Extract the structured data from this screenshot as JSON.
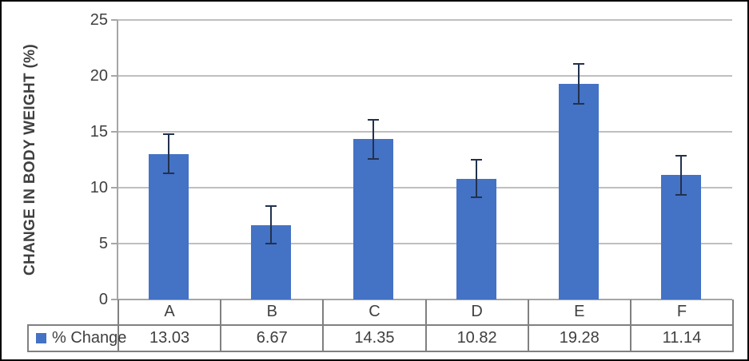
{
  "chart_data": {
    "type": "bar",
    "title": "",
    "xlabel": "",
    "ylabel": "CHANGE IN BODY WEIGHT (%)",
    "categories": [
      "A",
      "B",
      "C",
      "D",
      "E",
      "F"
    ],
    "series": [
      {
        "name": "% Change",
        "values": [
          13.03,
          6.67,
          14.35,
          10.82,
          19.28,
          11.14
        ],
        "values_display": [
          "13.03",
          "6.67",
          "14.35",
          "10.82",
          "19.28",
          "11.14"
        ],
        "error_bars": [
          1.75,
          1.7,
          1.75,
          1.7,
          1.8,
          1.75
        ]
      }
    ],
    "ylim": [
      0,
      25
    ],
    "yticks": [
      0,
      5,
      10,
      15,
      20,
      25
    ],
    "grid": true,
    "has_data_table": true,
    "legend_position": "data-table-left"
  },
  "colors": {
    "bar_fill": "#4472C4",
    "error_bar": "#22314E",
    "gridline": "#BFBFBF",
    "axis_line": "#A6A6A6",
    "table_border": "#808080",
    "text": "#3F3F3F",
    "frame_border": "#000000",
    "background": "#FFFFFF"
  }
}
